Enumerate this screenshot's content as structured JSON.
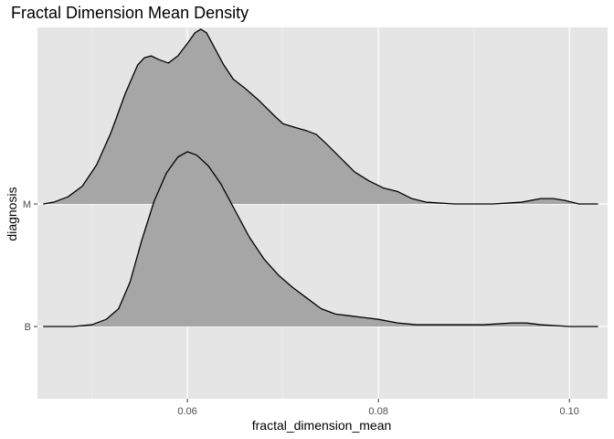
{
  "chart_data": {
    "type": "ridgeline",
    "title": "Fractal Dimension Mean Density",
    "xlabel": "fractal_dimension_mean",
    "ylabel": "diagnosis",
    "x_ticks": [
      0.06,
      0.08,
      0.1
    ],
    "x_tick_labels": [
      "0.06",
      "0.08",
      "0.10"
    ],
    "x_minor_ticks": [
      0.05,
      0.07,
      0.09
    ],
    "xlim": [
      0.0443,
      0.104
    ],
    "categories": [
      "B",
      "M"
    ],
    "fill_color": "#a6a6a6",
    "line_color": "#000000",
    "panel_color": "#e5e5e5",
    "grid": true,
    "series": [
      {
        "name": "M",
        "x": [
          0.0449,
          0.046,
          0.0475,
          0.049,
          0.0505,
          0.052,
          0.0535,
          0.0548,
          0.0555,
          0.0562,
          0.057,
          0.058,
          0.059,
          0.06,
          0.0608,
          0.0614,
          0.062,
          0.0628,
          0.0638,
          0.0648,
          0.066,
          0.0675,
          0.069,
          0.07,
          0.0712,
          0.0725,
          0.0735,
          0.0745,
          0.076,
          0.0775,
          0.079,
          0.0805,
          0.082,
          0.0835,
          0.085,
          0.088,
          0.092,
          0.095,
          0.097,
          0.0983,
          0.0995,
          0.101,
          0.103
        ],
        "y": [
          0.0,
          0.01,
          0.04,
          0.1,
          0.22,
          0.4,
          0.62,
          0.78,
          0.82,
          0.83,
          0.81,
          0.79,
          0.83,
          0.9,
          0.96,
          0.98,
          0.96,
          0.88,
          0.78,
          0.7,
          0.65,
          0.58,
          0.5,
          0.45,
          0.43,
          0.41,
          0.39,
          0.34,
          0.26,
          0.18,
          0.13,
          0.09,
          0.07,
          0.03,
          0.01,
          0.0,
          0.0,
          0.01,
          0.03,
          0.03,
          0.02,
          0.0,
          0.0
        ]
      },
      {
        "name": "B",
        "x": [
          0.0449,
          0.048,
          0.05,
          0.0515,
          0.0528,
          0.054,
          0.0552,
          0.0565,
          0.0578,
          0.059,
          0.06,
          0.061,
          0.0622,
          0.0635,
          0.065,
          0.0665,
          0.068,
          0.0695,
          0.071,
          0.0725,
          0.074,
          0.0755,
          0.077,
          0.0785,
          0.08,
          0.082,
          0.084,
          0.086,
          0.088,
          0.091,
          0.094,
          0.0955,
          0.097,
          0.1,
          0.103
        ],
        "y": [
          0.0,
          0.0,
          0.01,
          0.04,
          0.1,
          0.25,
          0.48,
          0.7,
          0.86,
          0.95,
          0.98,
          0.96,
          0.9,
          0.8,
          0.65,
          0.5,
          0.38,
          0.29,
          0.22,
          0.16,
          0.1,
          0.07,
          0.06,
          0.05,
          0.04,
          0.02,
          0.01,
          0.01,
          0.01,
          0.01,
          0.02,
          0.02,
          0.01,
          0.0,
          0.0
        ]
      }
    ]
  }
}
